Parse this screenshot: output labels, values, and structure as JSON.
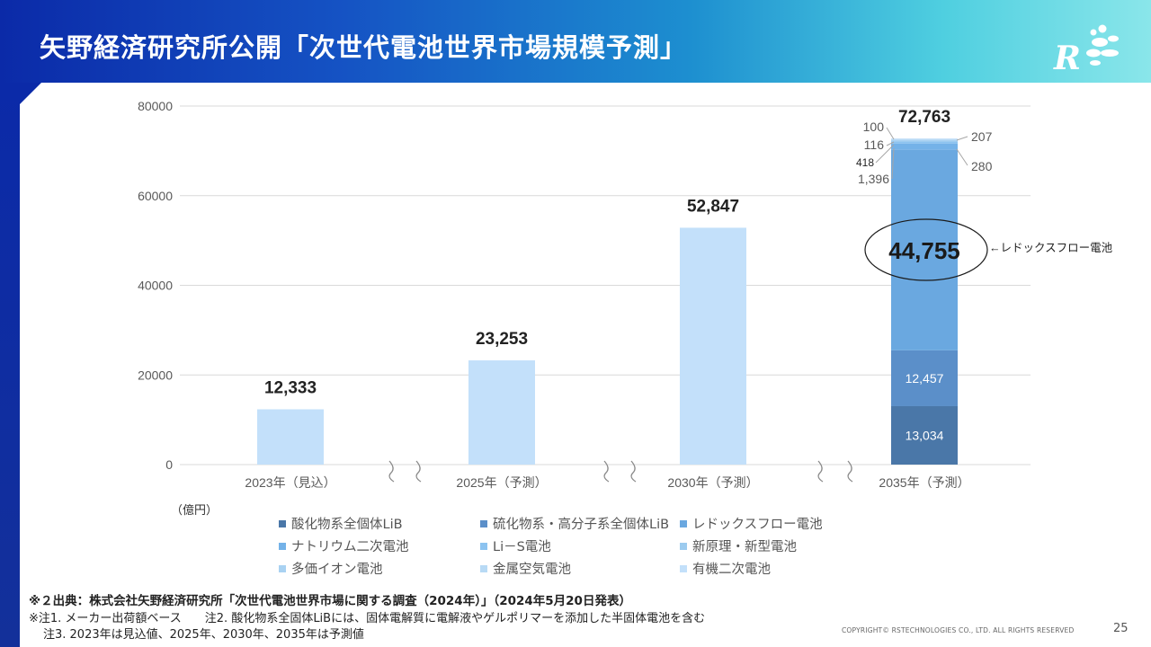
{
  "header": {
    "title": "矢野経済研究所公開「次世代電池世界市場規模予測」"
  },
  "colors": {
    "header_gradient_start": "#0b2aa8",
    "header_gradient_end": "#8ae6ea",
    "gridline": "#d9d9d9",
    "axis_text": "#595959"
  },
  "chart_data": {
    "type": "bar",
    "stacked": true,
    "unit_label": "（億円）",
    "ylim": [
      0,
      80000
    ],
    "yticks": [
      "0",
      "20000",
      "40000",
      "60000",
      "80000"
    ],
    "grid": true,
    "categories": [
      "2023年（見込）",
      "2025年（予測）",
      "2030年（予測）",
      "2035年（予測）"
    ],
    "totals": [
      "12,333",
      "23,253",
      "52,847",
      "72,763"
    ],
    "series": [
      {
        "name": "酸化物系全個体LiB",
        "color": "#4a77a8",
        "values": [
          0,
          0,
          0,
          13034
        ]
      },
      {
        "name": "硫化物系・高分子系全個体LiB",
        "color": "#5b8fc9",
        "values": [
          0,
          0,
          0,
          12457
        ]
      },
      {
        "name": "レドックスフロー電池",
        "color": "#6aa8e0",
        "values": [
          0,
          0,
          0,
          44755
        ]
      },
      {
        "name": "ナトリウム二次電池",
        "color": "#74b2e8",
        "values": [
          0,
          0,
          0,
          1396
        ]
      },
      {
        "name": "Li－S電池",
        "color": "#8cc3f0",
        "values": [
          0,
          0,
          0,
          418
        ]
      },
      {
        "name": "新原理・新型電池",
        "color": "#9ccbef",
        "values": [
          0,
          0,
          0,
          280
        ]
      },
      {
        "name": "多価イオン電池",
        "color": "#a9d2f2",
        "values": [
          0,
          0,
          0,
          116
        ]
      },
      {
        "name": "金属空気電池",
        "color": "#b8daf5",
        "values": [
          0,
          0,
          0,
          207
        ]
      },
      {
        "name": "有機二次電池",
        "color": "#c3e0fa",
        "values": [
          12333,
          23253,
          52847,
          100
        ]
      }
    ],
    "segment_labels": [
      "13,034",
      "12,457",
      "44,755"
    ],
    "callout_labels": [
      "100",
      "116",
      "418",
      "1,396",
      "207",
      "280"
    ],
    "annotation": "←レドックスフロー電池",
    "legend_position": "bottom"
  },
  "notes": {
    "source": "※２出典：株式会社矢野経済研究所「次世代電池世界市場に関する調査（2024年）」（2024年5月20日発表）",
    "note1": "※注1. メーカー出荷額ベース　　注2. 酸化物系全固体LiBには、固体電解質に電解液やゲルポリマーを添加した半固体電池を含む",
    "note3": "注3. 2023年は見込値、2025年、2030年、2035年は予測値"
  },
  "footer": {
    "copyright": "COPYRIGHT© RSTECHNOLOGIES CO., LTD. ALL RIGHTS RESERVED",
    "page_number": "25"
  }
}
